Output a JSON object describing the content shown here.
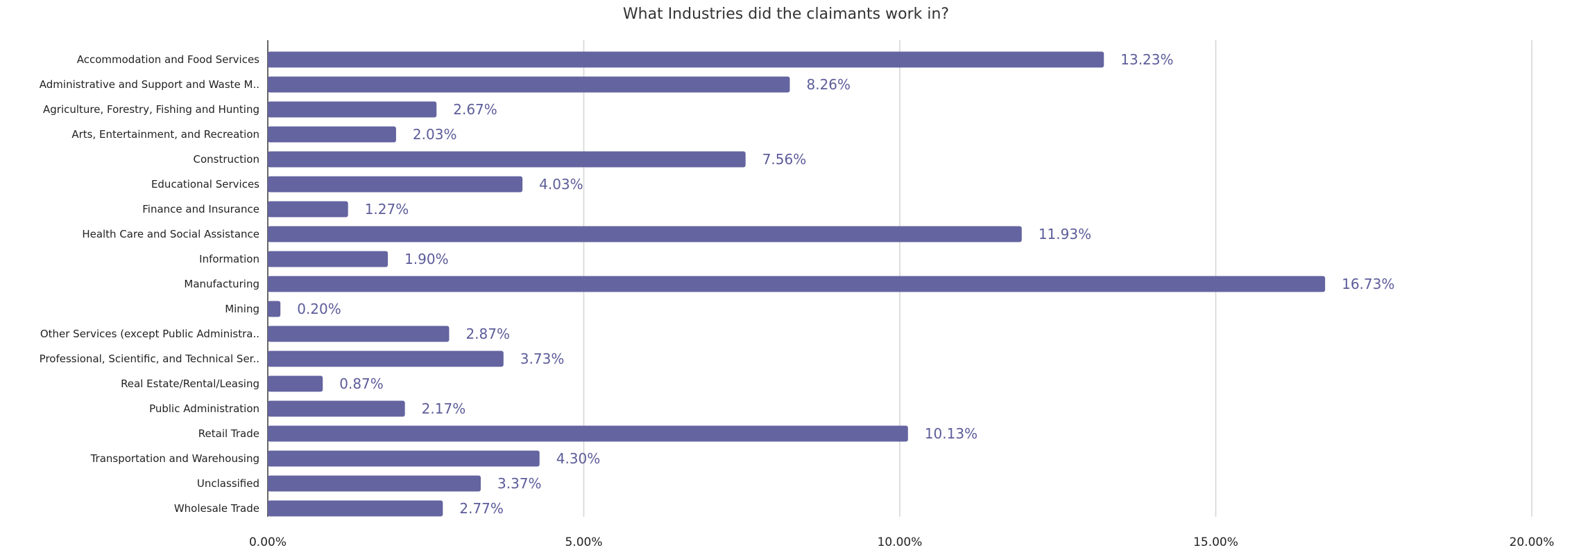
{
  "chart_data": {
    "type": "bar",
    "orientation": "horizontal",
    "title": "What Industries did the claimants work in?",
    "xlabel": "",
    "ylabel": "",
    "xlim": [
      0,
      20
    ],
    "x_ticks": [
      0,
      5,
      10,
      15,
      20
    ],
    "x_tick_labels": [
      "0.00%",
      "5.00%",
      "10.00%",
      "15.00%",
      "20.00%"
    ],
    "grid": true,
    "legend": "none",
    "bar_color": "#6464a0",
    "label_color": "#5c5c9a",
    "categories": [
      "Accommodation and Food Services",
      "Administrative and Support and Waste M..",
      "Agriculture, Forestry, Fishing and Hunting",
      "Arts, Entertainment, and Recreation",
      "Construction",
      "Educational Services",
      "Finance and Insurance",
      "Health Care and Social Assistance",
      "Information",
      "Manufacturing",
      "Mining",
      "Other Services (except Public Administra..",
      "Professional, Scientific, and Technical Ser..",
      "Real Estate/Rental/Leasing",
      "Public Administration",
      "Retail Trade",
      "Transportation and Warehousing",
      "Unclassified",
      "Wholesale Trade"
    ],
    "values": [
      13.23,
      8.26,
      2.67,
      2.03,
      7.56,
      4.03,
      1.27,
      11.93,
      1.9,
      16.73,
      0.2,
      2.87,
      3.73,
      0.87,
      2.17,
      10.13,
      4.3,
      3.37,
      2.77
    ],
    "value_labels": [
      "13.23%",
      "8.26%",
      "2.67%",
      "2.03%",
      "7.56%",
      "4.03%",
      "1.27%",
      "11.93%",
      "1.90%",
      "16.73%",
      "0.20%",
      "2.87%",
      "3.73%",
      "0.87%",
      "2.17%",
      "10.13%",
      "4.30%",
      "3.37%",
      "2.77%"
    ]
  }
}
